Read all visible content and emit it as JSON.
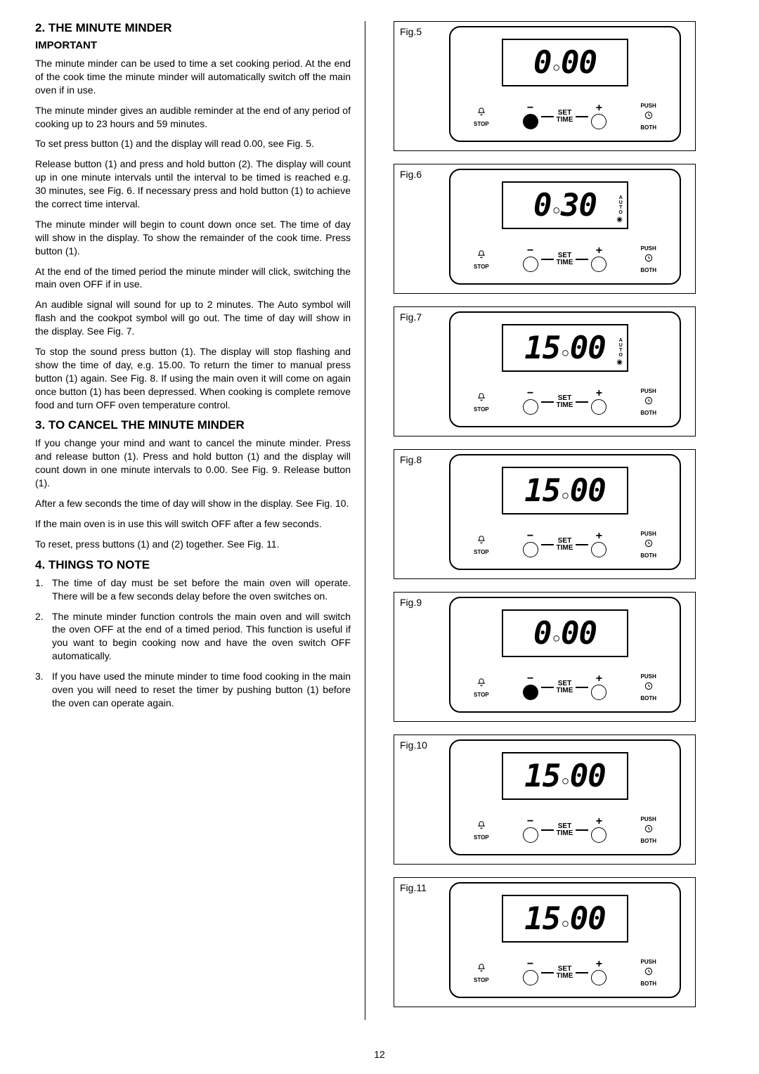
{
  "sections": {
    "s2_title": "2.  THE MINUTE MINDER",
    "important": "IMPORTANT",
    "p1": "The minute minder can be used to time a set cooking period.   At the end of the cook time the minute minder will automatically switch off the main oven if in use.",
    "p2": "The minute minder gives an audible reminder at the end of any period of cooking up to 23 hours and 59 minutes.",
    "p3": "To set press button (1) and the display will read 0.00, see Fig. 5.",
    "p4": "Release button (1) and press and hold button (2). The display will count up in one minute intervals until the interval to be timed is reached e.g. 30 minutes, see Fig. 6.  If necessary press and hold button (1) to achieve the correct time interval.",
    "p5": "The minute minder will begin to count down once set. The time of day will show in the display.  To show the remainder of the cook time.  Press button (1).",
    "p6": "At the end of the timed period the minute minder will click, switching the main oven OFF if in use.",
    "p7": "An audible signal will sound for up to 2 minutes. The Auto symbol will flash and the cookpot symbol will go out.  The time of day will show in the display.  See Fig. 7.",
    "p8": "To stop the sound press button (1).  The display will stop flashing and show the time of day, e.g. 15.00. To return the timer to manual press button (1) again. See Fig. 8.  If using the main oven it will come on again once button (1) has been depressed. When cooking is complete remove food and turn OFF oven temperature control.",
    "s3_title": "3.  TO CANCEL THE MINUTE MINDER",
    "p9": "If you change your mind and want to cancel the minute minder. Press and release button (1). Press and hold button (1) and the display will count down in one minute intervals to 0.00.  See Fig. 9.  Release button (1).",
    "p10": "After a few seconds the time of day will show in the display.  See Fig. 10.",
    "p11": "If the main oven is in use this will switch OFF after a few seconds.",
    "p12": "To reset, press buttons (1) and (2) together.  See Fig. 11.",
    "s4_title": "4.  THINGS TO NOTE",
    "note1": "The time of day must be set before the main oven will operate.  There will be a few seconds delay before the oven switches on.",
    "note2": "The minute minder function controls the main oven and will switch the oven OFF at the end of a timed period.  This function is useful if you want to begin cooking now and have the oven switch OFF automatically.",
    "note3": "If you have used the minute minder to time food cooking in the main oven you will need to reset the timer by pushing button (1) before the oven can operate again."
  },
  "figures": [
    {
      "label": "Fig.5",
      "display_l": "0",
      "display_r": "00",
      "auto": false,
      "pot": false,
      "btn1_filled": true,
      "btn2_filled": false
    },
    {
      "label": "Fig.6",
      "display_l": "0",
      "display_r": "30",
      "auto": true,
      "pot": true,
      "btn1_filled": false,
      "btn2_filled": false
    },
    {
      "label": "Fig.7",
      "display_l": "15",
      "display_r": "00",
      "auto": true,
      "pot": true,
      "btn1_filled": false,
      "btn2_filled": false
    },
    {
      "label": "Fig.8",
      "display_l": "15",
      "display_r": "00",
      "auto": false,
      "pot": false,
      "btn1_filled": false,
      "btn2_filled": false
    },
    {
      "label": "Fig.9",
      "display_l": "0",
      "display_r": "00",
      "auto": false,
      "pot": false,
      "btn1_filled": true,
      "btn2_filled": false
    },
    {
      "label": "Fig.10",
      "display_l": "15",
      "display_r": "00",
      "auto": false,
      "pot": false,
      "btn1_filled": false,
      "btn2_filled": false
    },
    {
      "label": "Fig.11",
      "display_l": "15",
      "display_r": "00",
      "auto": false,
      "pot": false,
      "btn1_filled": false,
      "btn2_filled": false
    }
  ],
  "control_labels": {
    "minus": "−",
    "plus": "+",
    "set": "SET",
    "time": "TIME",
    "stop": "STOP",
    "push": "PUSH",
    "both": "BOTH"
  },
  "page_number": "12",
  "colors": {
    "text": "#000000",
    "bg": "#ffffff"
  }
}
